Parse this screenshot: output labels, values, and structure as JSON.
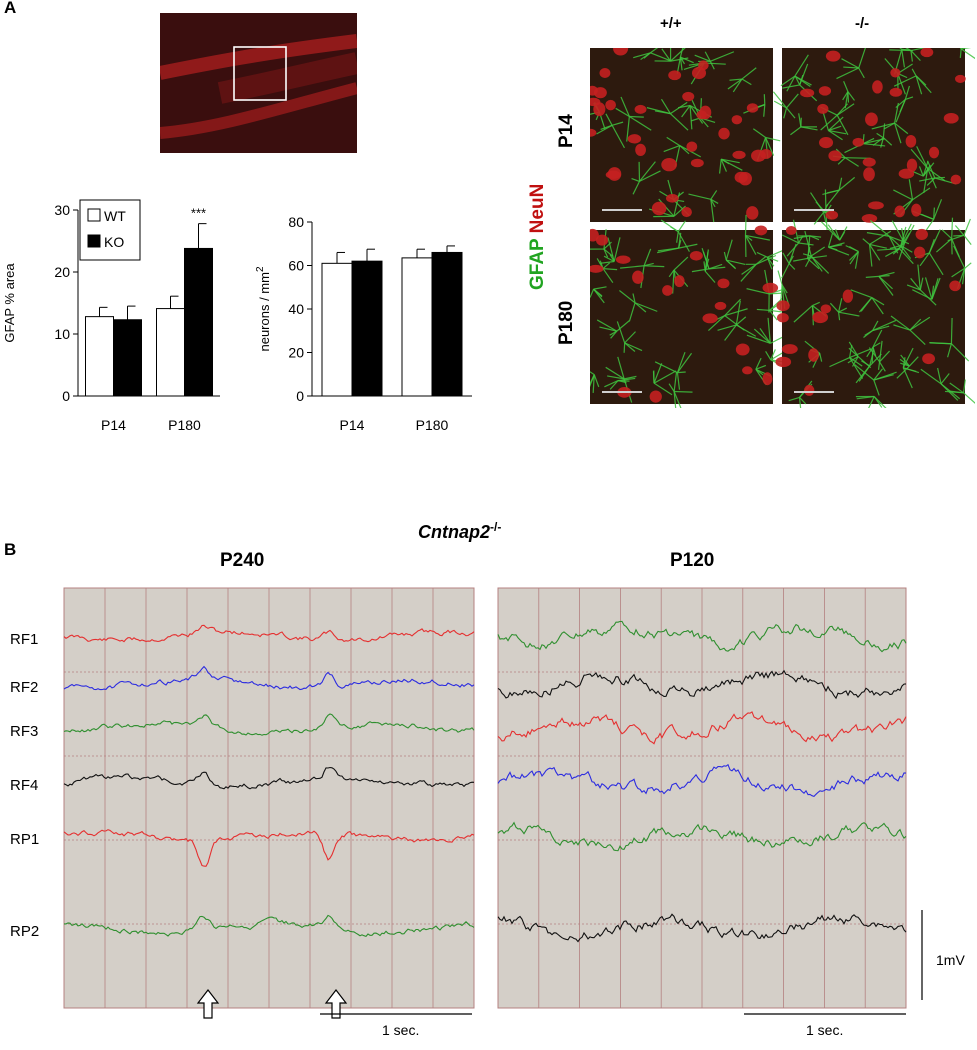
{
  "panel_a": {
    "label": "A",
    "genotypes": [
      "+/+",
      "-/-"
    ],
    "ages": [
      "P14",
      "P180"
    ],
    "stain_gfap": "GFAP",
    "stain_neun": "NeuN"
  },
  "panel_b": {
    "label": "B",
    "strain": "Cntnap2",
    "strain_sup": "-/-",
    "left_title": "P240",
    "right_title": "P120",
    "channels": [
      "RF1",
      "RF2",
      "RF3",
      "RF4",
      "RP1",
      "RP2"
    ],
    "left_colors": [
      "#e53030",
      "#2c2ce0",
      "#2f8f2f",
      "#111111",
      "#e53030",
      "#2f8f2f"
    ],
    "right_colors": [
      "#2f8f2f",
      "#111111",
      "#e53030",
      "#2c2ce0",
      "#2f8f2f",
      "#111111"
    ],
    "time_scale": "1 sec.",
    "voltage_scale": "1mV",
    "bg_color": "#d4cfc8",
    "grid_color": "#b48080"
  },
  "chart_data": [
    {
      "type": "bar",
      "categories": [
        "P14",
        "P180"
      ],
      "series": [
        {
          "name": "WT",
          "values": [
            12.8,
            14.1
          ],
          "errors": [
            1.5,
            2.0
          ]
        },
        {
          "name": "KO",
          "values": [
            12.3,
            23.8
          ],
          "errors": [
            2.2,
            4.0
          ]
        }
      ],
      "ylabel": "GFAP % area",
      "ylim": [
        0,
        30
      ],
      "yticks": [
        "0",
        "10",
        "20",
        "30"
      ],
      "annotation": "***",
      "legend": "top-left"
    },
    {
      "type": "bar",
      "categories": [
        "P14",
        "P180"
      ],
      "series": [
        {
          "name": "WT",
          "values": [
            61,
            63.5
          ],
          "errors": [
            5,
            4
          ]
        },
        {
          "name": "KO",
          "values": [
            62,
            66
          ],
          "errors": [
            5.5,
            3
          ]
        }
      ],
      "ylabel": "neurons / mm",
      "ylabel_sup": "2",
      "ylim": [
        0,
        80
      ],
      "yticks": [
        "0",
        "20",
        "40",
        "60",
        "80"
      ]
    }
  ]
}
